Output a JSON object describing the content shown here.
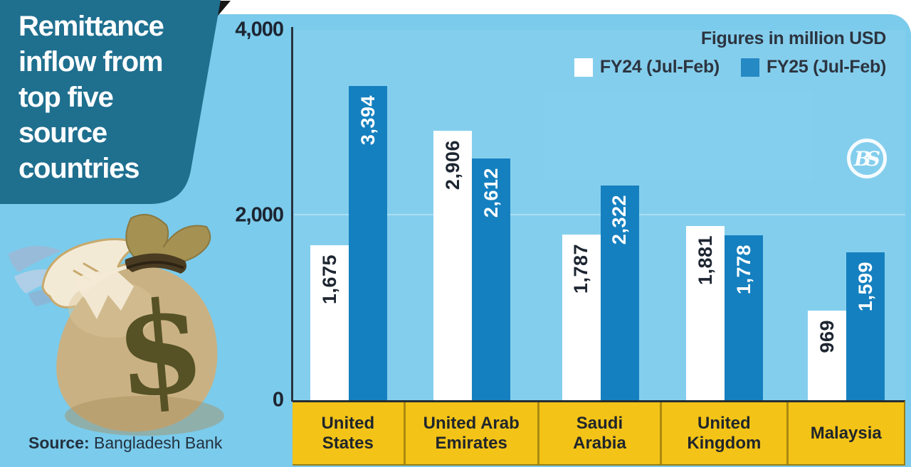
{
  "title": {
    "lines": [
      "Remittance",
      "inflow from",
      "top five",
      "source",
      "countries"
    ]
  },
  "note": "Figures in million USD",
  "legend": {
    "items": [
      {
        "label": "FY24 (Jul-Feb)"
      },
      {
        "label": "FY25 (Jul-Feb)"
      }
    ]
  },
  "source": {
    "label": "Source:",
    "text": "Bangladesh Bank"
  },
  "logo": {
    "text": "BS"
  },
  "colors": {
    "panel_bg": "#7bcbec",
    "ribbon": "#1f6f8f",
    "fy24_bar": "#ffffff",
    "fy25_bar": "#1580bf",
    "band_bg": "#f3c317",
    "text_dark": "#1c2531"
  },
  "chart_data": {
    "type": "bar",
    "title": "Remittance inflow from top five source countries",
    "note": "Figures in million USD",
    "unit": "million USD",
    "categories": [
      "United States",
      "United Arab Emirates",
      "Saudi Arabia",
      "United Kingdom",
      "Malaysia"
    ],
    "category_labels": [
      "United\nStates",
      "United Arab\nEmirates",
      "Saudi\nArabia",
      "United\nKingdom",
      "Malaysia"
    ],
    "series": [
      {
        "name": "FY24 (Jul-Feb)",
        "color": "#ffffff",
        "values": [
          1675,
          2906,
          1787,
          1881,
          969
        ],
        "labels": [
          "1,675",
          "2,906",
          "1,787",
          "1,881",
          "969"
        ]
      },
      {
        "name": "FY25 (Jul-Feb)",
        "color": "#1580bf",
        "values": [
          3394,
          2612,
          2322,
          1778,
          1599
        ],
        "labels": [
          "3,394",
          "2,612",
          "2,322",
          "1,778",
          "1,599"
        ]
      }
    ],
    "ylim": [
      0,
      4000
    ],
    "y_ticks": [
      "4,000",
      "2,000",
      "0"
    ],
    "y_tick_values": [
      4000,
      2000,
      0
    ],
    "grid": "horizontal line at 2,000",
    "legend_position": "top-right",
    "source": "Bangladesh Bank"
  }
}
